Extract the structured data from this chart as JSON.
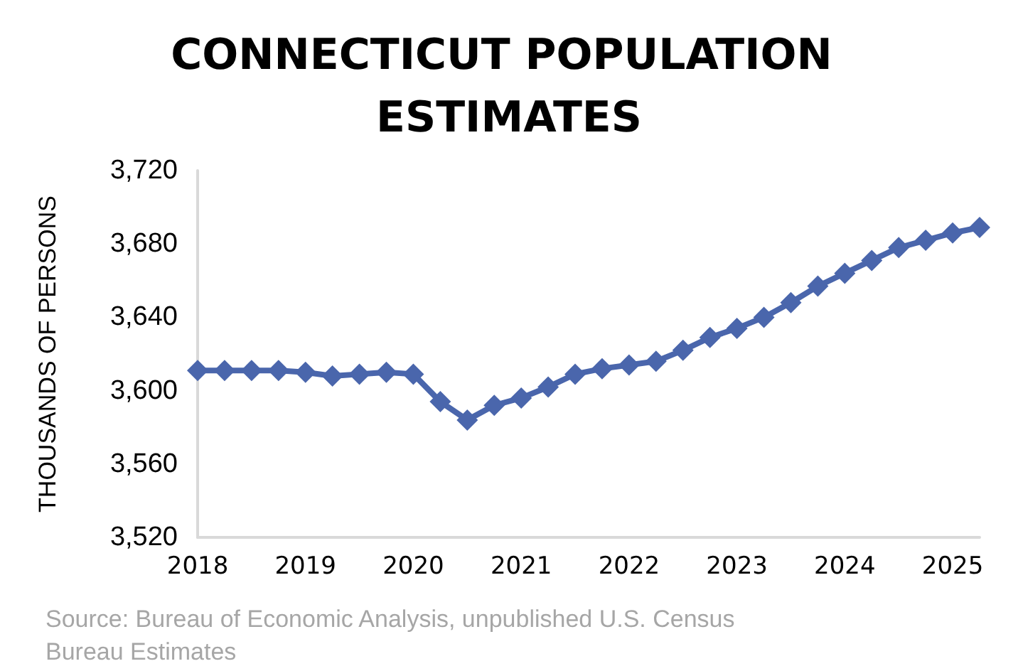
{
  "chart_data": {
    "type": "line",
    "title": "CONNECTICUT POPULATION ESTIMATES",
    "ylabel": "THOUSANDS OF PERSONS",
    "categories": [
      "2018",
      null,
      null,
      null,
      "2019",
      null,
      null,
      null,
      "2020",
      null,
      null,
      null,
      "2021",
      null,
      null,
      null,
      "2022",
      null,
      null,
      null,
      "2023",
      null,
      null,
      null,
      "2024",
      null,
      null,
      null,
      "2025",
      null
    ],
    "series": [
      {
        "color": "#4a66ac",
        "values": [
          3611,
          3611,
          3611,
          3611,
          3610,
          3608,
          3609,
          3610,
          3609,
          3594,
          3584,
          3592,
          3596,
          3602,
          3609,
          3612,
          3614,
          3616,
          3622,
          3629,
          3634,
          3640,
          3648,
          3657,
          3664,
          3671,
          3678,
          3682,
          3686,
          3689
        ]
      }
    ],
    "ylim": [
      3520,
      3720
    ],
    "yticks": [
      {
        "value": 3520,
        "label": "3,520"
      },
      {
        "value": 3560,
        "label": "3,560"
      },
      {
        "value": 3600,
        "label": "3,600"
      },
      {
        "value": 3640,
        "label": "3,640"
      },
      {
        "value": 3680,
        "label": "3,680"
      },
      {
        "value": 3720,
        "label": "3,720"
      }
    ],
    "grid": false,
    "marker": "diamond",
    "line_style": "solid",
    "annotations": [
      "Source: Bureau of Economic Analysis, unpublished U.S. Census Bureau Estimates"
    ]
  }
}
